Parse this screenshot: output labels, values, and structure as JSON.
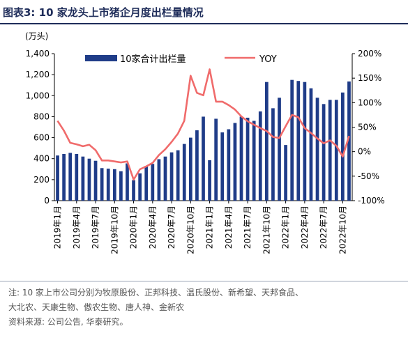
{
  "title": "图表3:  10 家龙头上市猪企月度出栏量情况",
  "chart_data": {
    "type": "bar",
    "y_unit_label": "(万头)",
    "left_axis": {
      "min": 0,
      "max": 1400,
      "ticks": [
        "0",
        "200",
        "400",
        "600",
        "800",
        "1,000",
        "1,200",
        "1,400"
      ]
    },
    "right_axis": {
      "min": -100,
      "max": 200,
      "ticks": [
        "-100%",
        "-50%",
        "0%",
        "50%",
        "100%",
        "150%",
        "200%"
      ]
    },
    "x_tick_labels": [
      "2019年1月",
      "2019年4月",
      "2019年7月",
      "2019年10月",
      "2020年1月",
      "2020年4月",
      "2020年7月",
      "2020年10月",
      "2021年1月",
      "2021年4月",
      "2021年7月",
      "2021年10月",
      "2022年1月",
      "2022年4月",
      "2022年7月",
      "2022年10月"
    ],
    "x_tick_indices": [
      0,
      3,
      6,
      9,
      12,
      15,
      18,
      21,
      24,
      27,
      30,
      33,
      36,
      39,
      42,
      45
    ],
    "legend": {
      "position": "top",
      "bar_label": "10家合计出栏量",
      "line_label": "YOY"
    },
    "colors": {
      "bar": "#1f3c88",
      "line": "#f06b6b",
      "axis": "#000000"
    },
    "series": [
      {
        "name": "10家合计出栏量",
        "kind": "bar",
        "axis": "left",
        "values": [
          430,
          445,
          455,
          445,
          420,
          400,
          380,
          310,
          305,
          300,
          280,
          355,
          195,
          260,
          330,
          350,
          395,
          420,
          460,
          480,
          540,
          600,
          670,
          800,
          385,
          780,
          650,
          680,
          740,
          800,
          790,
          760,
          850,
          1130,
          880,
          980,
          530,
          1150,
          1140,
          1130,
          1070,
          980,
          920,
          960,
          960,
          1030,
          1135
        ]
      },
      {
        "name": "YOY",
        "kind": "line",
        "axis": "right",
        "values": [
          63,
          43,
          18,
          15,
          11,
          14,
          3,
          -18,
          -18,
          -20,
          -22,
          -20,
          -57,
          -36,
          -30,
          -23,
          -7,
          5,
          20,
          37,
          63,
          155,
          120,
          115,
          168,
          102,
          102,
          95,
          86,
          72,
          62,
          55,
          48,
          42,
          30,
          28,
          52,
          75,
          70,
          48,
          38,
          27,
          17,
          23,
          12,
          -10,
          32
        ]
      }
    ]
  },
  "notes": {
    "line1": "注: 10 家上市公司分别为牧原股份、正邦科技、温氏股份、新希望、天邦食品、",
    "line2": "大北农、天康生物、傲农生物、唐人神、金新农",
    "line3": "资料来源: 公司公告, 华泰研究。"
  }
}
